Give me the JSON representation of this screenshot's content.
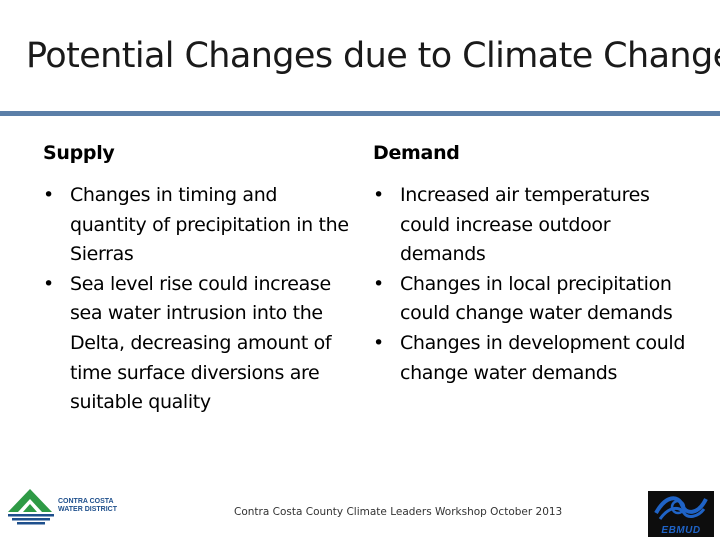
{
  "title": "Potential Changes due to Climate Change",
  "supply": {
    "heading": "Supply",
    "items": [
      "Changes in timing and quantity of precipitation in the Sierras",
      "Sea level rise could increase sea water intrusion into the Delta, decreasing amount of time surface diversions are suitable quality"
    ]
  },
  "demand": {
    "heading": "Demand",
    "items": [
      "Increased air temperatures could increase outdoor demands",
      "Changes in local precipitation could change water demands",
      "Changes in development could change water demands"
    ]
  },
  "bullet": "•",
  "footer": "Contra Costa County Climate Leaders Workshop October 2013",
  "logos": {
    "left_text": "CONTRA COSTA\nWATER DISTRICT",
    "right_text": "EBMUD",
    "colors": {
      "ccwd_green": "#2e9a45",
      "ccwd_blue": "#1e4f8c",
      "ebmud_blue": "#1f63c6",
      "rule": "#5b7fa8"
    }
  }
}
